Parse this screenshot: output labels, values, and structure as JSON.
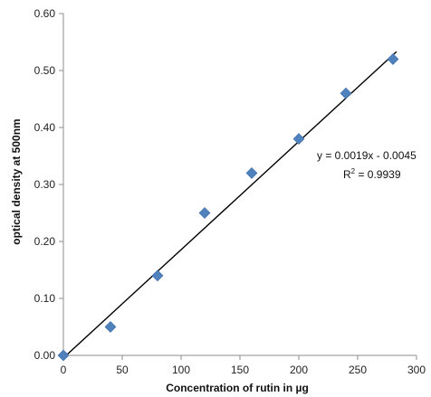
{
  "chart_data": {
    "type": "scatter",
    "xlabel": "Concentration of rutin in µg",
    "ylabel": "optical density at 500nm",
    "xlim": [
      0,
      300
    ],
    "ylim": [
      0,
      0.6
    ],
    "x_ticks": [
      "0",
      "50",
      "100",
      "150",
      "200",
      "250",
      "300"
    ],
    "y_ticks": [
      "0.00",
      "0.10",
      "0.20",
      "0.30",
      "0.40",
      "0.50",
      "0.60"
    ],
    "grid": false,
    "legend": "none",
    "series": [
      {
        "marker": "diamond",
        "color": "#4f81bd",
        "x": [
          0,
          40,
          80,
          120,
          160,
          200,
          240,
          280
        ],
        "y": [
          0.0,
          0.05,
          0.14,
          0.25,
          0.32,
          0.38,
          0.46,
          0.52
        ]
      }
    ],
    "trendline": {
      "type": "linear",
      "slope": 0.0019,
      "intercept": -0.0045,
      "x_range": [
        0,
        283
      ],
      "color": "#000000",
      "equation": "y = 0.0019x - 0.0045",
      "r_squared_prefix": "R",
      "r_squared_exponent": "2",
      "r_squared_value": " = 0.9939"
    }
  }
}
